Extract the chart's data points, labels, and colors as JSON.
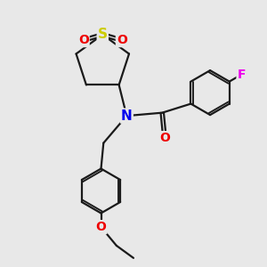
{
  "bg_color": "#e8e8e8",
  "bond_color": "#1a1a1a",
  "bond_width": 1.6,
  "atom_colors": {
    "S": "#cccc00",
    "N": "#0000ee",
    "O": "#ee0000",
    "F": "#ee00ee",
    "C": "#1a1a1a"
  },
  "font_size_large": 10,
  "font_size_small": 9,
  "figsize": [
    3.0,
    3.0
  ],
  "dpi": 100
}
